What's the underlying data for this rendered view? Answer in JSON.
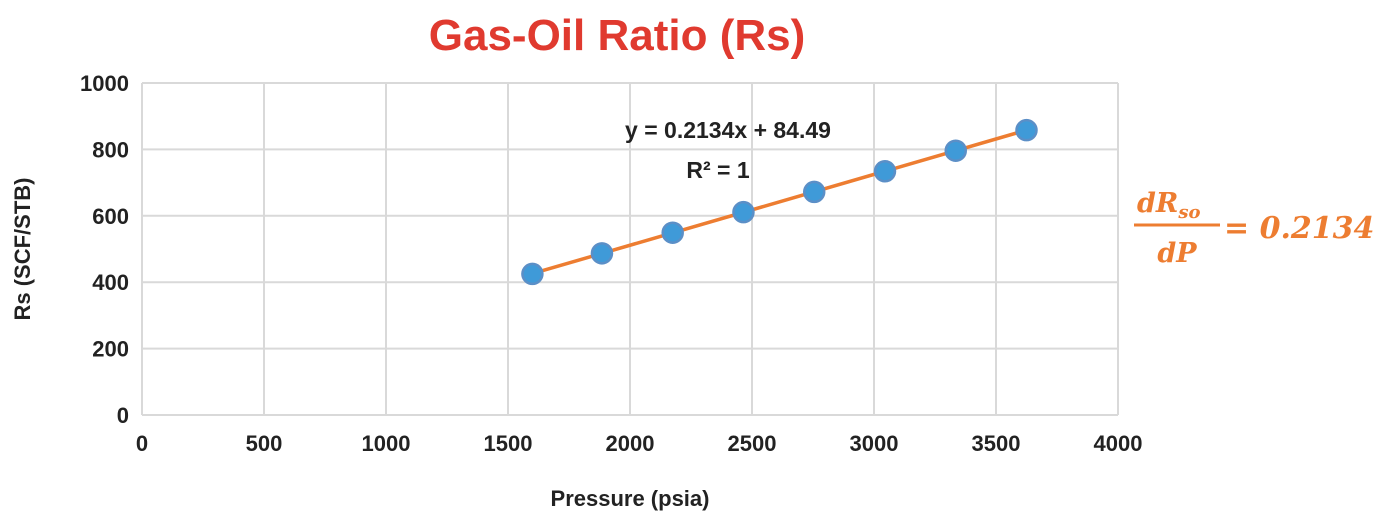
{
  "chart_data": {
    "type": "scatter",
    "title": "Gas-Oil Ratio (Rs)",
    "xlabel": "Pressure (psia)",
    "ylabel": "Rs (SCF/STB)",
    "xlim": [
      0,
      4000
    ],
    "ylim": [
      0,
      1000
    ],
    "x_ticks": [
      0,
      500,
      1000,
      1500,
      2000,
      2500,
      3000,
      3500,
      4000
    ],
    "y_ticks": [
      0,
      200,
      400,
      600,
      800,
      1000
    ],
    "grid": true,
    "series": [
      {
        "x": [
          1600,
          1885,
          2175,
          2465,
          2755,
          3045,
          3335,
          3625
        ],
        "y": [
          425,
          487,
          549,
          611,
          672,
          734,
          796,
          858
        ]
      }
    ],
    "trendline": {
      "type": "linear",
      "slope": 0.2134,
      "intercept": 84.49,
      "equation": "y = 0.2134x + 84.49",
      "r_squared": "R² = 1"
    },
    "annotation": {
      "numerator": "dR",
      "numerator_sub": "so",
      "denominator": "dP",
      "value": "= 0.2134"
    }
  },
  "colors": {
    "title": "#e03a2f",
    "marker": "#3f9ad8",
    "marker_edge": "#5b8fc7",
    "trendline": "#ed7d31",
    "grid": "#d9d9d9",
    "annotation": "#ed7d31"
  }
}
